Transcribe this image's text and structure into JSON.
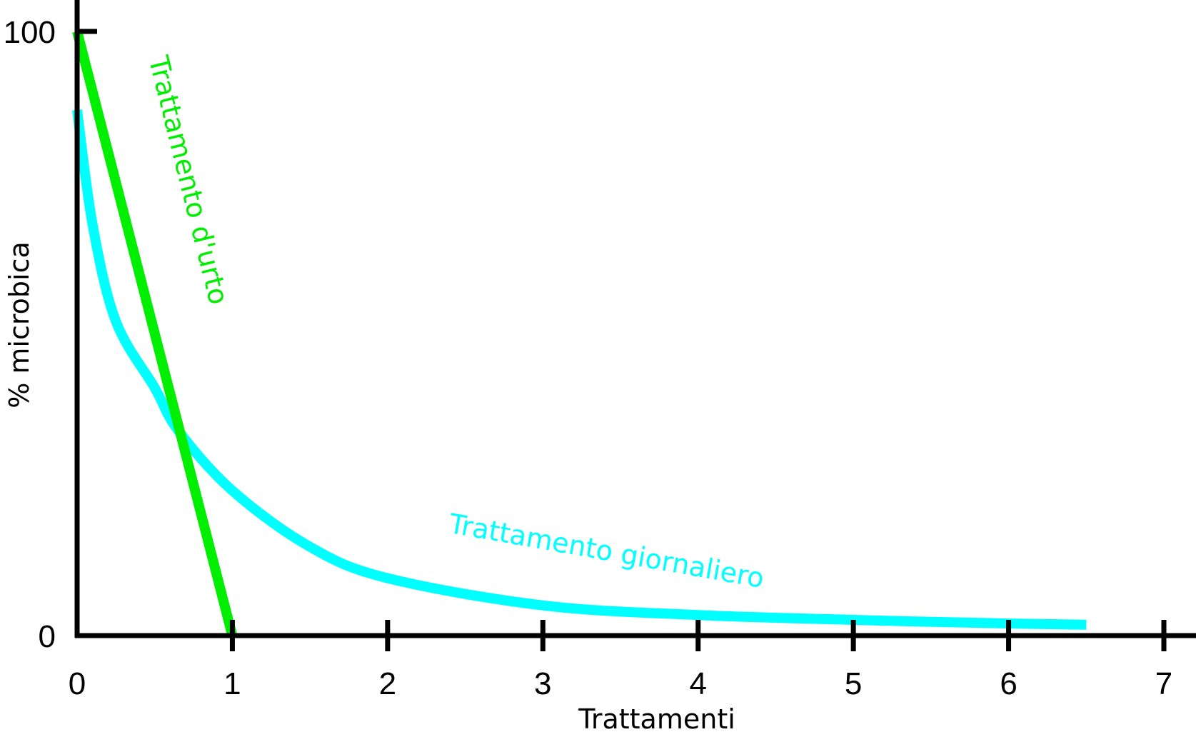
{
  "chart_data": {
    "type": "line",
    "xlabel": "Trattamenti",
    "ylabel": "% microbica",
    "xlim": [
      0,
      7
    ],
    "ylim": [
      0,
      100
    ],
    "x_ticks": [
      "0",
      "1",
      "2",
      "3",
      "4",
      "5",
      "6",
      "7"
    ],
    "y_ticks": [
      "0",
      "100"
    ],
    "grid": false,
    "series": [
      {
        "name": "Trattamento d'urto",
        "color": "#00ee00",
        "x": [
          0,
          1
        ],
        "y": [
          100,
          0
        ]
      },
      {
        "name": "Trattamento giornaliero",
        "color": "#00ffff",
        "x": [
          0,
          0.1,
          0.25,
          0.5,
          0.65,
          1.0,
          1.5,
          2.0,
          3.0,
          4.0,
          5.0,
          6.0,
          6.5
        ],
        "y": [
          87,
          68,
          52,
          41,
          34,
          24,
          14.7,
          9.5,
          5,
          3.4,
          2.6,
          2,
          1.8
        ]
      }
    ]
  }
}
